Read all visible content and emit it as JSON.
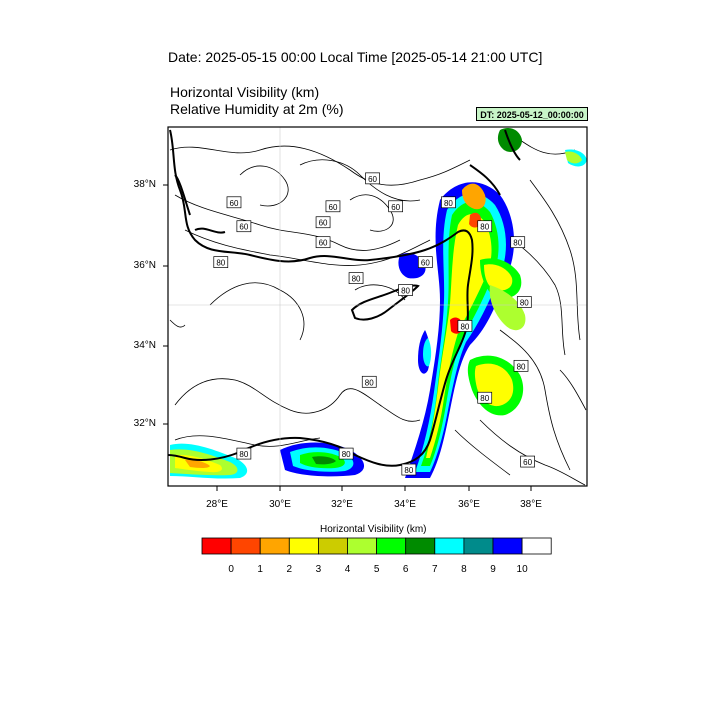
{
  "title": "Date: 2025-05-15  00:00 Local Time [2025-05-14  21:00 UTC]",
  "variables": {
    "line1": "Horizontal Visibility   (km)",
    "line2": "Relative Humidity at 2m   (%)"
  },
  "dt_label": "DT: 2025-05-12_00:00:00",
  "map": {
    "lon_range": [
      26.7,
      39.4
    ],
    "lat_range": [
      30.4,
      39.4
    ],
    "lat_ticks": [
      "38°N",
      "36°N",
      "34°N",
      "32°N"
    ],
    "lon_ticks": [
      "28°E",
      "30°E",
      "32°E",
      "34°E",
      "36°E",
      "38°E"
    ],
    "contour_labels": [
      {
        "lon": 28.7,
        "lat": 37.5,
        "text": "60"
      },
      {
        "lon": 28.3,
        "lat": 36.0,
        "text": "80"
      },
      {
        "lon": 29.0,
        "lat": 36.9,
        "text": "60"
      },
      {
        "lon": 31.7,
        "lat": 37.4,
        "text": "60"
      },
      {
        "lon": 31.4,
        "lat": 36.5,
        "text": "60"
      },
      {
        "lon": 31.4,
        "lat": 37.0,
        "text": "60"
      },
      {
        "lon": 32.9,
        "lat": 38.1,
        "text": "60"
      },
      {
        "lon": 33.6,
        "lat": 37.4,
        "text": "60"
      },
      {
        "lon": 34.5,
        "lat": 36.0,
        "text": "60"
      },
      {
        "lon": 32.4,
        "lat": 35.6,
        "text": "80"
      },
      {
        "lon": 33.9,
        "lat": 35.3,
        "text": "80"
      },
      {
        "lon": 36.3,
        "lat": 36.9,
        "text": "80"
      },
      {
        "lon": 35.2,
        "lat": 37.5,
        "text": "80"
      },
      {
        "lon": 37.3,
        "lat": 36.5,
        "text": "80"
      },
      {
        "lon": 37.5,
        "lat": 35.0,
        "text": "80"
      },
      {
        "lon": 37.4,
        "lat": 33.4,
        "text": "80"
      },
      {
        "lon": 36.3,
        "lat": 32.6,
        "text": "80"
      },
      {
        "lon": 32.8,
        "lat": 33.0,
        "text": "80"
      },
      {
        "lon": 35.7,
        "lat": 34.4,
        "text": "80"
      },
      {
        "lon": 29.0,
        "lat": 31.2,
        "text": "80"
      },
      {
        "lon": 32.1,
        "lat": 31.2,
        "text": "80"
      },
      {
        "lon": 34.0,
        "lat": 30.8,
        "text": "80"
      },
      {
        "lon": 37.6,
        "lat": 31.0,
        "text": "60"
      }
    ]
  },
  "legend": {
    "title": "Horizontal Visibility  (km)",
    "colors": [
      "#ff0000",
      "#ff4500",
      "#ffa500",
      "#ffff00",
      "#cccc00",
      "#adff2f",
      "#00ff00",
      "#008b00",
      "#00ffff",
      "#008b8b",
      "#0000ff",
      "#ffffff"
    ],
    "labels": [
      "0",
      "1",
      "2",
      "3",
      "4",
      "5",
      "6",
      "7",
      "8",
      "9",
      "10"
    ]
  }
}
